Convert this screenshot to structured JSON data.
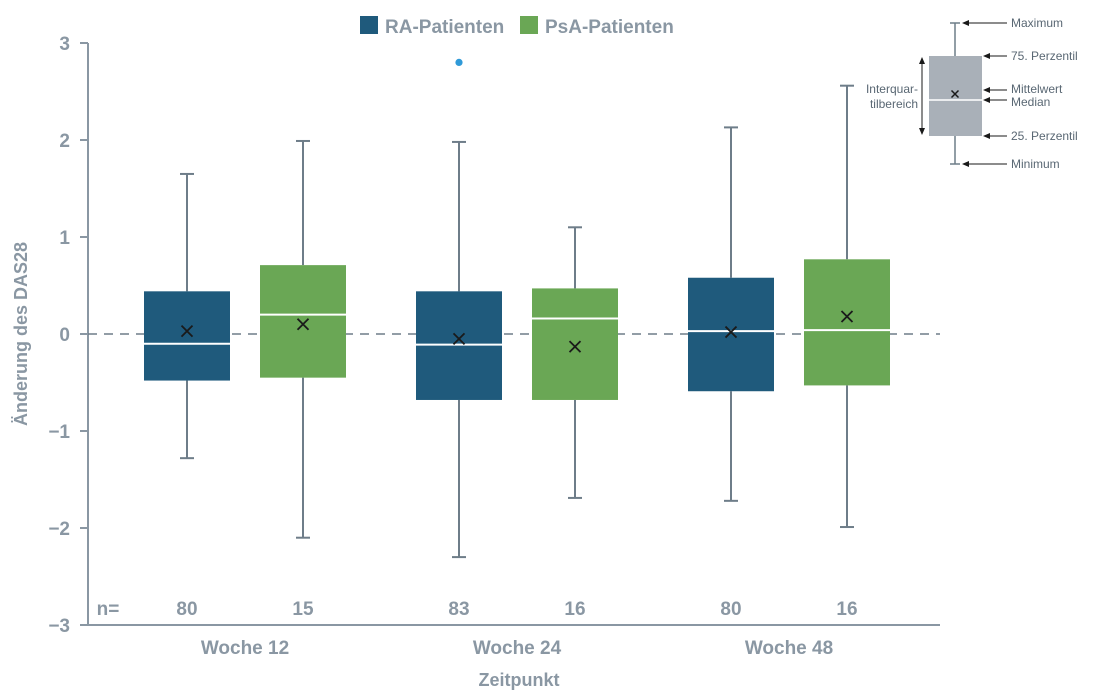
{
  "chart_data": {
    "type": "boxplot",
    "title": "",
    "xlabel": "Zeitpunkt",
    "ylabel": "Änderung des DAS28",
    "ylim": [
      -3,
      3
    ],
    "yticks": [
      3,
      2,
      1,
      0,
      -1,
      -2,
      -3
    ],
    "ytick_labels": [
      "3",
      "2",
      "1",
      "0",
      "−1",
      "−2",
      "−3"
    ],
    "reference_line": 0,
    "categories": [
      "Woche 12",
      "Woche 24",
      "Woche 48"
    ],
    "n_prefix": "n=",
    "series": [
      {
        "name": "RA-Patienten",
        "color": "#1f5a7c",
        "boxes": [
          {
            "category": "Woche 12",
            "n": "80",
            "min": -1.28,
            "q1": -0.48,
            "median": -0.1,
            "mean": 0.03,
            "q3": 0.44,
            "max": 1.65,
            "outliers": []
          },
          {
            "category": "Woche 24",
            "n": "83",
            "min": -2.3,
            "q1": -0.68,
            "median": -0.11,
            "mean": -0.05,
            "q3": 0.44,
            "max": 1.98,
            "outliers": [
              2.8
            ]
          },
          {
            "category": "Woche 48",
            "n": "80",
            "min": -1.72,
            "q1": -0.59,
            "median": 0.03,
            "mean": 0.02,
            "q3": 0.58,
            "max": 2.13,
            "outliers": []
          }
        ]
      },
      {
        "name": "PsA-Patienten",
        "color": "#6aa755",
        "boxes": [
          {
            "category": "Woche 12",
            "n": "15",
            "min": -2.1,
            "q1": -0.45,
            "median": 0.2,
            "mean": 0.1,
            "q3": 0.71,
            "max": 1.99,
            "outliers": []
          },
          {
            "category": "Woche 24",
            "n": "16",
            "min": -1.69,
            "q1": -0.68,
            "median": 0.16,
            "mean": -0.13,
            "q3": 0.47,
            "max": 1.1,
            "outliers": []
          },
          {
            "category": "Woche 48",
            "n": "16",
            "min": -1.99,
            "q1": -0.53,
            "median": 0.04,
            "mean": 0.18,
            "q3": 0.77,
            "max": 2.56,
            "outliers": []
          }
        ]
      }
    ],
    "legend": {
      "placement": "top-center",
      "entries": [
        "RA-Patienten",
        "PsA-Patienten"
      ]
    },
    "outlier_color": "#2f9ad8",
    "key": {
      "box_label": "Interquar-\ntilbereich",
      "labels": {
        "maximum": "Maximum",
        "p75": "75. Perzentil",
        "mean": "Mittelwert",
        "median": "Median",
        "p25": "25. Perzentil",
        "minimum": "Minimum"
      },
      "box_color": "#a9b0b8"
    }
  }
}
